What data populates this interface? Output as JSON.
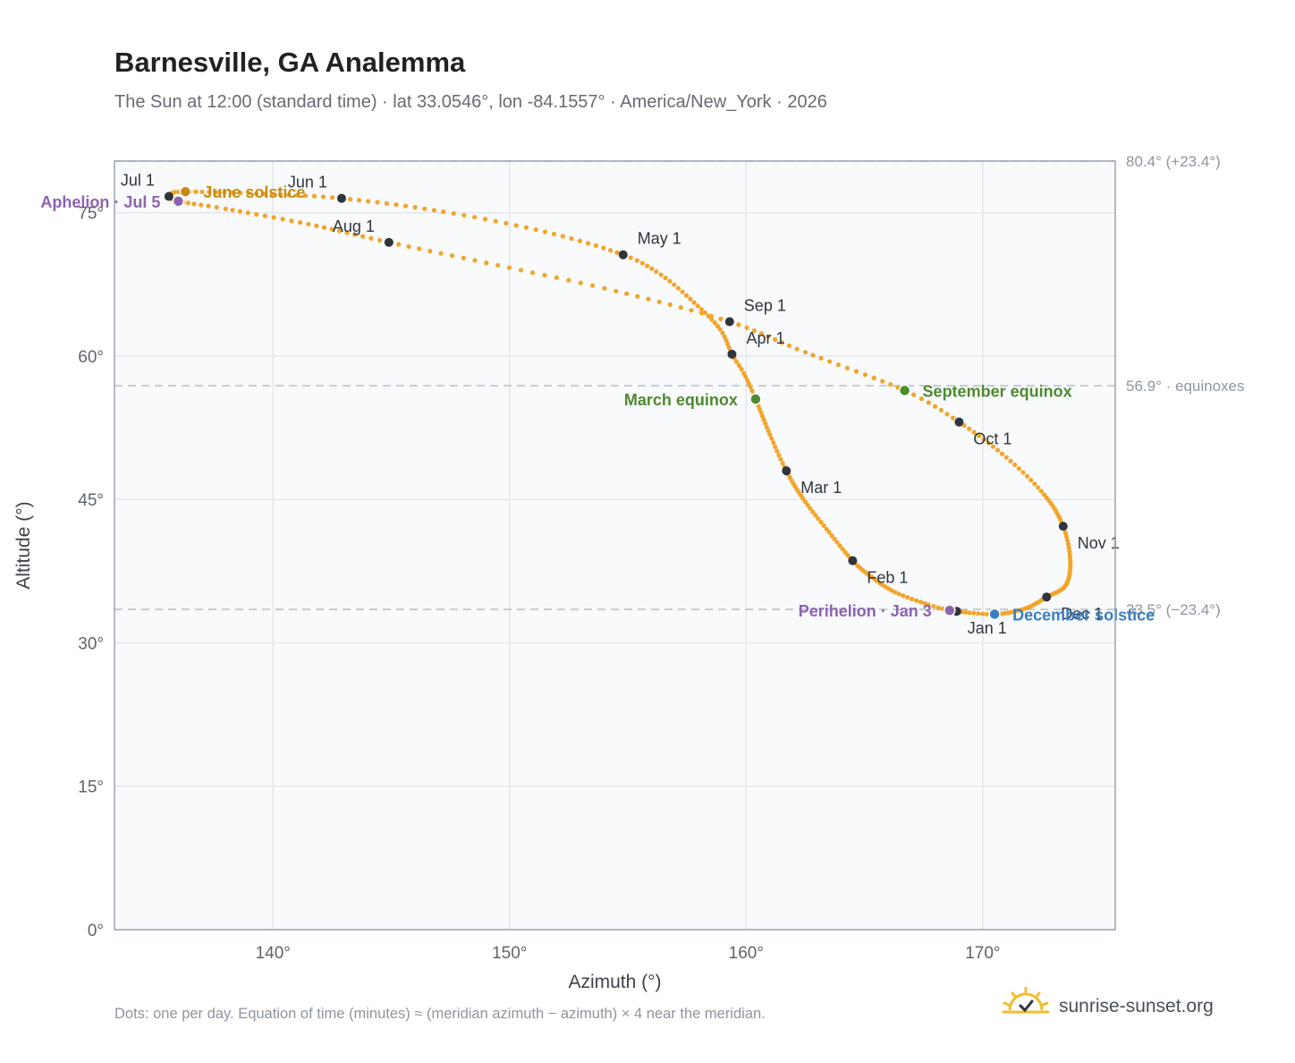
{
  "title": "Barnesville, GA Analemma",
  "subtitle": "The Sun at 12:00 (standard time) · lat 33.0546°, lon -84.1557° · America/New_York · 2026",
  "footnote": "Dots: one per day. Equation of time (minutes) ≈ (meridian azimuth − azimuth) × 4 near the meridian.",
  "brand": {
    "name": "sunrise-sunset.org",
    "icon": "sun-logo-icon"
  },
  "colors": {
    "curve": "#f2a52a",
    "month_marker": "#2f343d",
    "solstice_june": "#c98a0e",
    "solstice_december": "#3a7fc1",
    "equinox": "#4e8a2e",
    "apsis": "#8c63b0",
    "guide": "#b9c2cc",
    "plot_bg": "#f8fafc",
    "frame": "#9aa4b0"
  },
  "chart_data": {
    "type": "scatter",
    "title": "Barnesville, GA Analemma",
    "xlabel": "Azimuth (°)",
    "ylabel": "Altitude (°)",
    "xlim": [
      133.3,
      175.6
    ],
    "ylim": [
      0,
      80.4
    ],
    "x_ticks": [
      140,
      150,
      160,
      170
    ],
    "x_tick_labels": [
      "140°",
      "150°",
      "160°",
      "170°"
    ],
    "y_ticks": [
      0,
      15,
      30,
      45,
      60,
      75
    ],
    "y_tick_labels": [
      "0°",
      "15°",
      "30°",
      "45°",
      "60°",
      "75°"
    ],
    "grid": true,
    "legend": "none",
    "curve_points": [
      {
        "date": "2026-01-01",
        "azimuth": 168.9,
        "altitude": 33.3
      },
      {
        "date": "2026-01-03",
        "azimuth": 168.6,
        "altitude": 33.4
      },
      {
        "date": "2026-01-08",
        "azimuth": 167.7,
        "altitude": 34.0
      },
      {
        "date": "2026-01-16",
        "azimuth": 166.3,
        "altitude": 35.3
      },
      {
        "date": "2026-01-24",
        "azimuth": 165.3,
        "altitude": 36.9
      },
      {
        "date": "2026-02-01",
        "azimuth": 164.5,
        "altitude": 38.6
      },
      {
        "date": "2026-02-11",
        "azimuth": 163.4,
        "altitude": 41.9
      },
      {
        "date": "2026-02-20",
        "azimuth": 162.4,
        "altitude": 45.1
      },
      {
        "date": "2026-03-01",
        "azimuth": 161.7,
        "altitude": 48.0
      },
      {
        "date": "2026-03-10",
        "azimuth": 161.0,
        "altitude": 51.8
      },
      {
        "date": "2026-03-20",
        "azimuth": 160.4,
        "altitude": 55.5
      },
      {
        "date": "2026-03-27",
        "azimuth": 159.9,
        "altitude": 58.2
      },
      {
        "date": "2026-04-01",
        "azimuth": 159.4,
        "altitude": 60.2
      },
      {
        "date": "2026-04-08",
        "azimuth": 158.9,
        "altitude": 62.8
      },
      {
        "date": "2026-04-16",
        "azimuth": 157.8,
        "altitude": 65.6
      },
      {
        "date": "2026-04-24",
        "azimuth": 156.4,
        "altitude": 68.5
      },
      {
        "date": "2026-05-01",
        "azimuth": 154.8,
        "altitude": 70.6
      },
      {
        "date": "2026-05-11",
        "azimuth": 151.5,
        "altitude": 73.0
      },
      {
        "date": "2026-05-21",
        "azimuth": 147.2,
        "altitude": 75.1
      },
      {
        "date": "2026-06-01",
        "azimuth": 142.9,
        "altitude": 76.5
      },
      {
        "date": "2026-06-11",
        "azimuth": 139.3,
        "altitude": 77.0
      },
      {
        "date": "2026-06-21",
        "azimuth": 136.3,
        "altitude": 77.2
      },
      {
        "date": "2026-06-26",
        "azimuth": 135.7,
        "altitude": 77.0
      },
      {
        "date": "2026-07-01",
        "azimuth": 135.6,
        "altitude": 76.7
      },
      {
        "date": "2026-07-05",
        "azimuth": 136.0,
        "altitude": 76.2
      },
      {
        "date": "2026-07-12",
        "azimuth": 138.0,
        "altitude": 75.4
      },
      {
        "date": "2026-07-22",
        "azimuth": 141.5,
        "altitude": 73.8
      },
      {
        "date": "2026-08-01",
        "azimuth": 144.9,
        "altitude": 71.9
      },
      {
        "date": "2026-08-11",
        "azimuth": 149.5,
        "altitude": 69.5
      },
      {
        "date": "2026-08-21",
        "azimuth": 154.5,
        "altitude": 66.8
      },
      {
        "date": "2026-09-01",
        "azimuth": 159.3,
        "altitude": 63.6
      },
      {
        "date": "2026-09-11",
        "azimuth": 162.5,
        "altitude": 60.4
      },
      {
        "date": "2026-09-23",
        "azimuth": 166.7,
        "altitude": 56.4
      },
      {
        "date": "2026-10-01",
        "azimuth": 169.0,
        "altitude": 53.1
      },
      {
        "date": "2026-10-11",
        "azimuth": 171.0,
        "altitude": 49.4
      },
      {
        "date": "2026-10-21",
        "azimuth": 172.6,
        "altitude": 45.5
      },
      {
        "date": "2026-11-01",
        "azimuth": 173.4,
        "altitude": 42.2
      },
      {
        "date": "2026-11-11",
        "azimuth": 173.7,
        "altitude": 38.6
      },
      {
        "date": "2026-11-21",
        "azimuth": 173.5,
        "altitude": 36.0
      },
      {
        "date": "2026-12-01",
        "azimuth": 172.7,
        "altitude": 34.8
      },
      {
        "date": "2026-12-11",
        "azimuth": 171.8,
        "altitude": 33.6
      },
      {
        "date": "2026-12-21",
        "azimuth": 170.5,
        "altitude": 33.0
      },
      {
        "date": "2026-12-31",
        "azimuth": 168.9,
        "altitude": 33.3
      }
    ],
    "month_markers": [
      {
        "label": "Jan 1",
        "azimuth": 168.9,
        "altitude": 33.3,
        "label_pos": "below"
      },
      {
        "label": "Feb 1",
        "azimuth": 164.5,
        "altitude": 38.6,
        "label_pos": "right-below"
      },
      {
        "label": "Mar 1",
        "azimuth": 161.7,
        "altitude": 48.0,
        "label_pos": "right-below"
      },
      {
        "label": "Apr 1",
        "azimuth": 159.4,
        "altitude": 60.2,
        "label_pos": "right-above"
      },
      {
        "label": "May 1",
        "azimuth": 154.8,
        "altitude": 70.6,
        "label_pos": "right-above"
      },
      {
        "label": "Jun 1",
        "azimuth": 142.9,
        "altitude": 76.5,
        "label_pos": "left-above"
      },
      {
        "label": "Jul 1",
        "azimuth": 135.6,
        "altitude": 76.7,
        "label_pos": "left-above"
      },
      {
        "label": "Aug 1",
        "azimuth": 144.9,
        "altitude": 71.9,
        "label_pos": "left-above"
      },
      {
        "label": "Sep 1",
        "azimuth": 159.3,
        "altitude": 63.6,
        "label_pos": "right-above"
      },
      {
        "label": "Oct 1",
        "azimuth": 169.0,
        "altitude": 53.1,
        "label_pos": "right-below"
      },
      {
        "label": "Nov 1",
        "azimuth": 173.4,
        "altitude": 42.2,
        "label_pos": "right-below"
      },
      {
        "label": "Dec 1",
        "azimuth": 172.7,
        "altitude": 34.8,
        "label_pos": "right-below"
      }
    ],
    "events": [
      {
        "label": "June solstice",
        "azimuth": 136.3,
        "altitude": 77.2,
        "kind": "solstice_june",
        "label_pos": "right"
      },
      {
        "label": "December solstice",
        "azimuth": 170.5,
        "altitude": 33.0,
        "kind": "solstice_december",
        "label_pos": "right"
      },
      {
        "label": "March equinox",
        "azimuth": 160.4,
        "altitude": 55.5,
        "kind": "equinox",
        "label_pos": "left"
      },
      {
        "label": "September equinox",
        "azimuth": 166.7,
        "altitude": 56.4,
        "kind": "equinox",
        "label_pos": "right"
      },
      {
        "label": "Aphelion · Jul 5",
        "azimuth": 136.0,
        "altitude": 76.2,
        "kind": "apsis",
        "label_pos": "left"
      },
      {
        "label": "Perihelion · Jan 3",
        "azimuth": 168.6,
        "altitude": 33.4,
        "kind": "apsis",
        "label_pos": "left"
      }
    ],
    "reference_lines": [
      {
        "altitude": 80.4,
        "label": "80.4° (+23.4°)"
      },
      {
        "altitude": 56.9,
        "label": "56.9° · equinoxes"
      },
      {
        "altitude": 33.5,
        "label": "33.5° (−23.4°)"
      }
    ]
  }
}
